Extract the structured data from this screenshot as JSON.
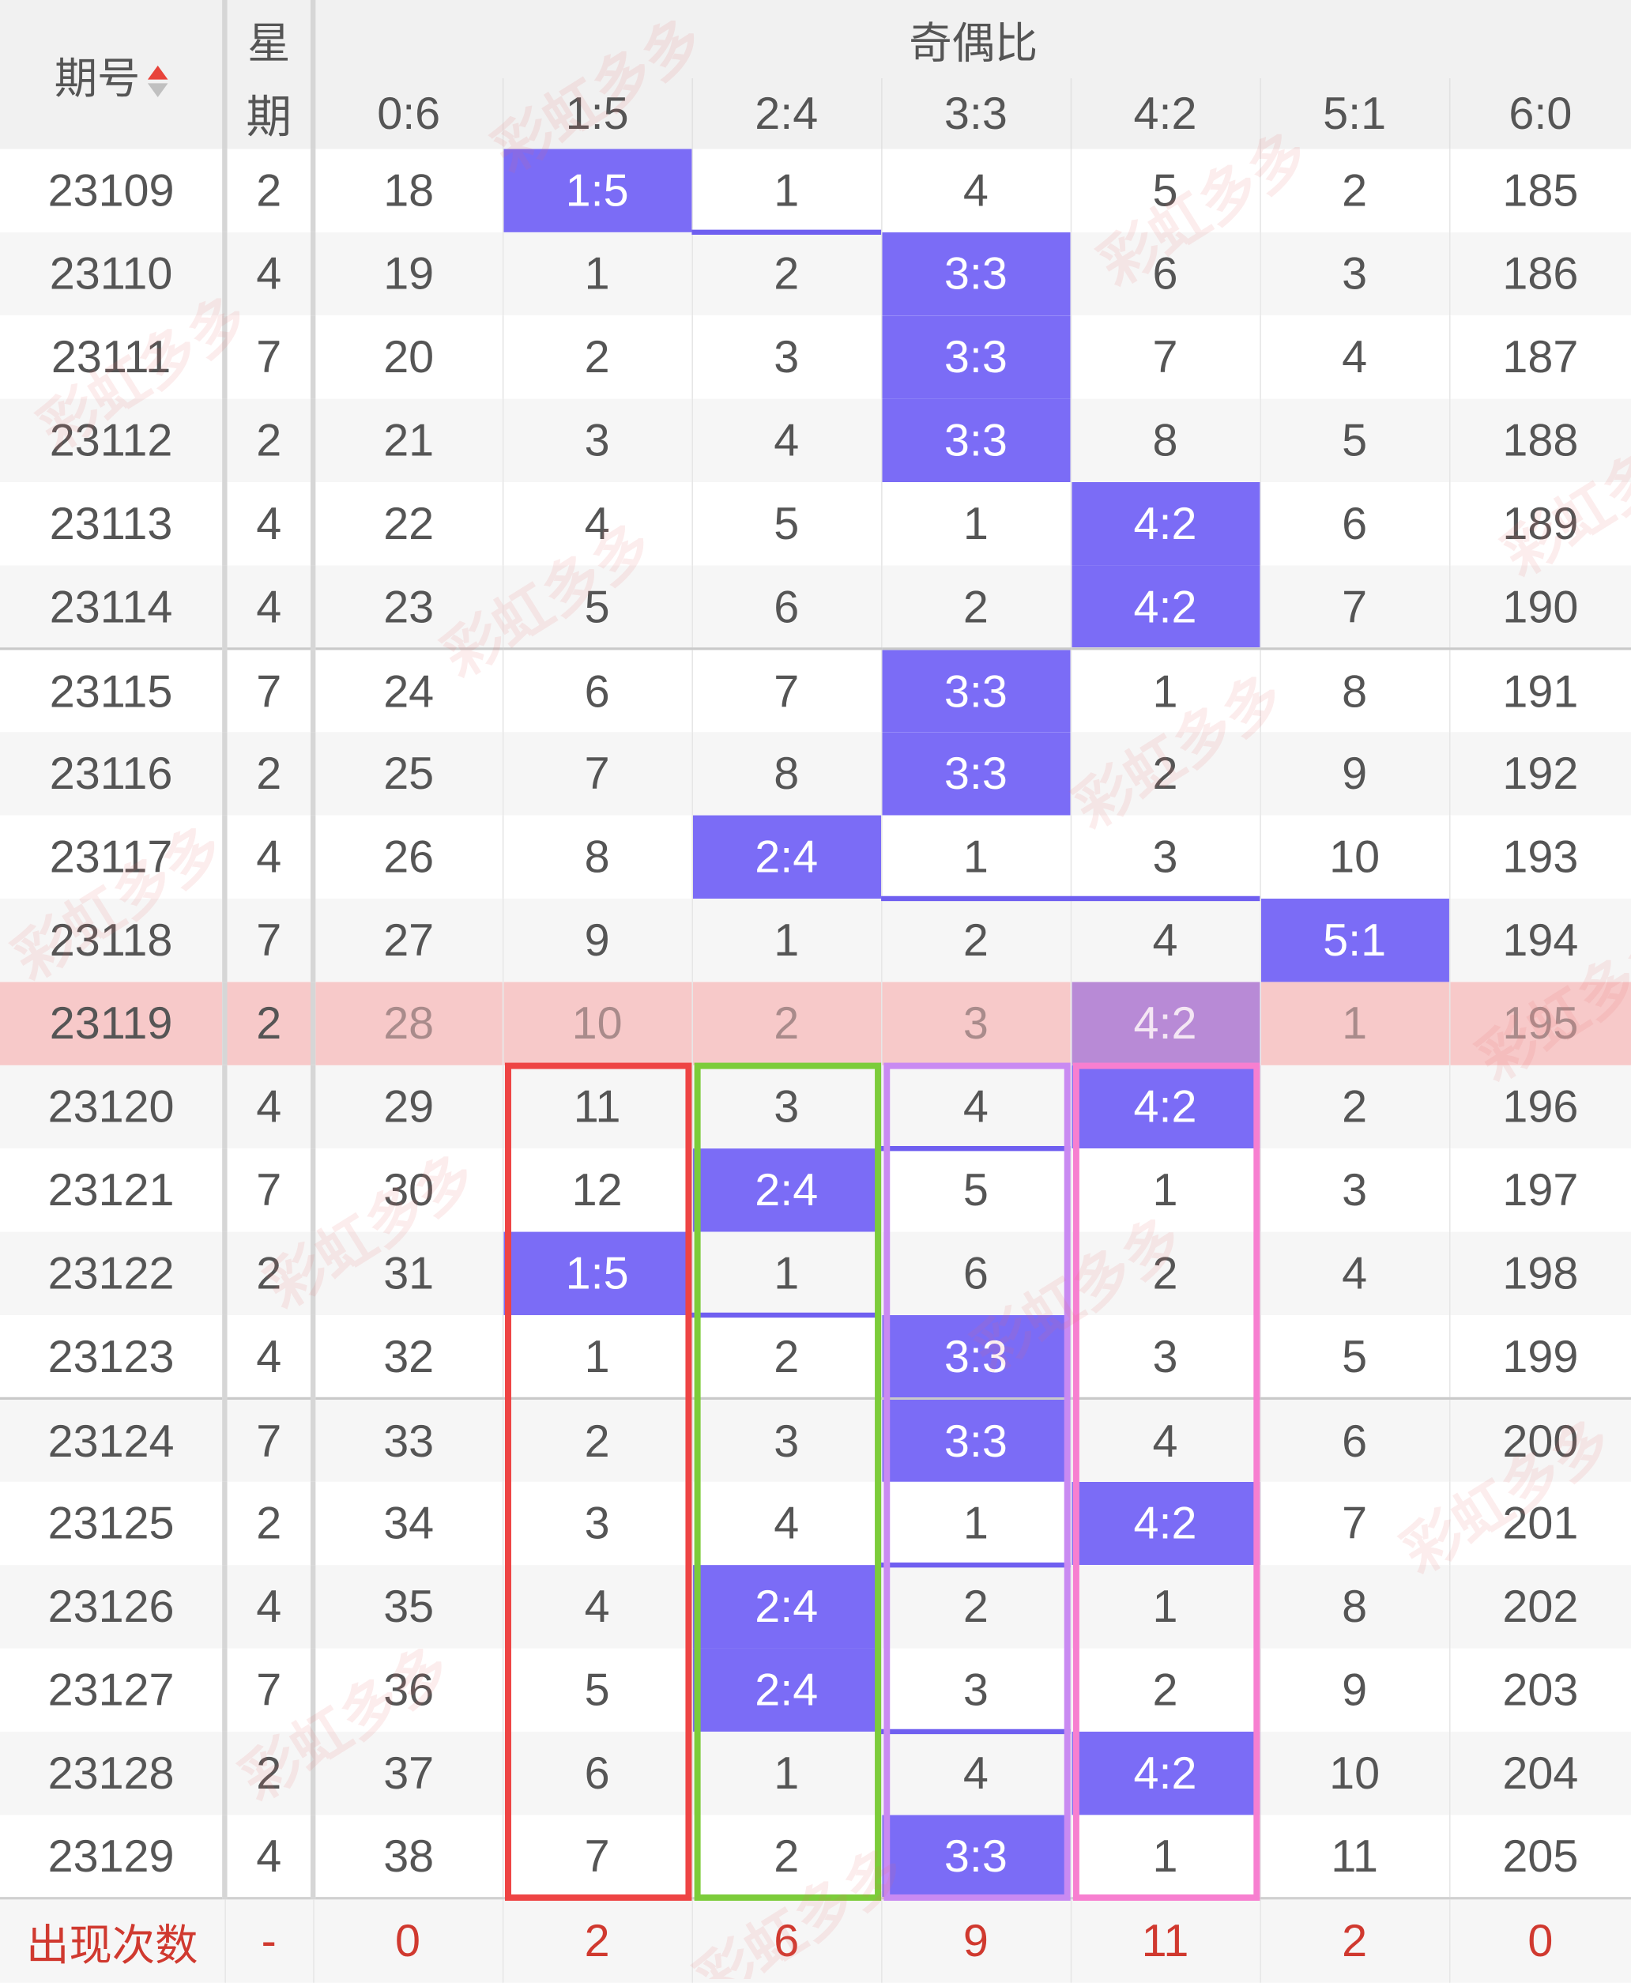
{
  "header": {
    "issue_label": "期号",
    "week_label_top": "星",
    "week_label_bottom": "期",
    "group_label": "奇偶比",
    "columns": [
      "0:6",
      "1:5",
      "2:4",
      "3:3",
      "4:2",
      "5:1",
      "6:0"
    ]
  },
  "rows": [
    {
      "issue": "23109",
      "week": "2",
      "cells": [
        "18",
        "1:5",
        "1",
        "4",
        "5",
        "2",
        "185"
      ],
      "hit": 1
    },
    {
      "issue": "23110",
      "week": "4",
      "cells": [
        "19",
        "1",
        "2",
        "3:3",
        "6",
        "3",
        "186"
      ],
      "hit": 3
    },
    {
      "issue": "23111",
      "week": "7",
      "cells": [
        "20",
        "2",
        "3",
        "3:3",
        "7",
        "4",
        "187"
      ],
      "hit": 3
    },
    {
      "issue": "23112",
      "week": "2",
      "cells": [
        "21",
        "3",
        "4",
        "3:3",
        "8",
        "5",
        "188"
      ],
      "hit": 3
    },
    {
      "issue": "23113",
      "week": "4",
      "cells": [
        "22",
        "4",
        "5",
        "1",
        "4:2",
        "6",
        "189"
      ],
      "hit": 4
    },
    {
      "issue": "23114",
      "week": "4",
      "cells": [
        "23",
        "5",
        "6",
        "2",
        "4:2",
        "7",
        "190"
      ],
      "hit": 4
    },
    {
      "issue": "23115",
      "week": "7",
      "cells": [
        "24",
        "6",
        "7",
        "3:3",
        "1",
        "8",
        "191"
      ],
      "hit": 3
    },
    {
      "issue": "23116",
      "week": "2",
      "cells": [
        "25",
        "7",
        "8",
        "3:3",
        "2",
        "9",
        "192"
      ],
      "hit": 3
    },
    {
      "issue": "23117",
      "week": "4",
      "cells": [
        "26",
        "8",
        "2:4",
        "1",
        "3",
        "10",
        "193"
      ],
      "hit": 2
    },
    {
      "issue": "23118",
      "week": "7",
      "cells": [
        "27",
        "9",
        "1",
        "2",
        "4",
        "5:1",
        "194"
      ],
      "hit": 5
    },
    {
      "issue": "23119",
      "week": "2",
      "cells": [
        "28",
        "10",
        "2",
        "3",
        "4:2",
        "1",
        "195"
      ],
      "hit": 4
    },
    {
      "issue": "23120",
      "week": "4",
      "cells": [
        "29",
        "11",
        "3",
        "4",
        "4:2",
        "2",
        "196"
      ],
      "hit": 4
    },
    {
      "issue": "23121",
      "week": "7",
      "cells": [
        "30",
        "12",
        "2:4",
        "5",
        "1",
        "3",
        "197"
      ],
      "hit": 2
    },
    {
      "issue": "23122",
      "week": "2",
      "cells": [
        "31",
        "1:5",
        "1",
        "6",
        "2",
        "4",
        "198"
      ],
      "hit": 1
    },
    {
      "issue": "23123",
      "week": "4",
      "cells": [
        "32",
        "1",
        "2",
        "3:3",
        "3",
        "5",
        "199"
      ],
      "hit": 3
    },
    {
      "issue": "23124",
      "week": "7",
      "cells": [
        "33",
        "2",
        "3",
        "3:3",
        "4",
        "6",
        "200"
      ],
      "hit": 3
    },
    {
      "issue": "23125",
      "week": "2",
      "cells": [
        "34",
        "3",
        "4",
        "1",
        "4:2",
        "7",
        "201"
      ],
      "hit": 4
    },
    {
      "issue": "23126",
      "week": "4",
      "cells": [
        "35",
        "4",
        "2:4",
        "2",
        "1",
        "8",
        "202"
      ],
      "hit": 2
    },
    {
      "issue": "23127",
      "week": "7",
      "cells": [
        "36",
        "5",
        "2:4",
        "3",
        "2",
        "9",
        "203"
      ],
      "hit": 2
    },
    {
      "issue": "23128",
      "week": "2",
      "cells": [
        "37",
        "6",
        "1",
        "4",
        "4:2",
        "10",
        "204"
      ],
      "hit": 4
    },
    {
      "issue": "23129",
      "week": "4",
      "cells": [
        "38",
        "7",
        "2",
        "3:3",
        "1",
        "11",
        "205"
      ],
      "hit": 3
    }
  ],
  "footer": {
    "label": "出现次数",
    "week": "-",
    "counts": [
      "0",
      "2",
      "6",
      "9",
      "11",
      "2",
      "0"
    ]
  },
  "watermark_text": "彩虹多多",
  "colors": {
    "hit": "#7b6cf6",
    "line": "#6f5ff0",
    "current_row": "#f7c9c9",
    "footer_text": "#d0392f",
    "zone_1_5": "#ee4444",
    "zone_2_4": "#7ccc3a",
    "zone_3_3": "#c98af2",
    "zone_4_2": "#f77fd0"
  }
}
